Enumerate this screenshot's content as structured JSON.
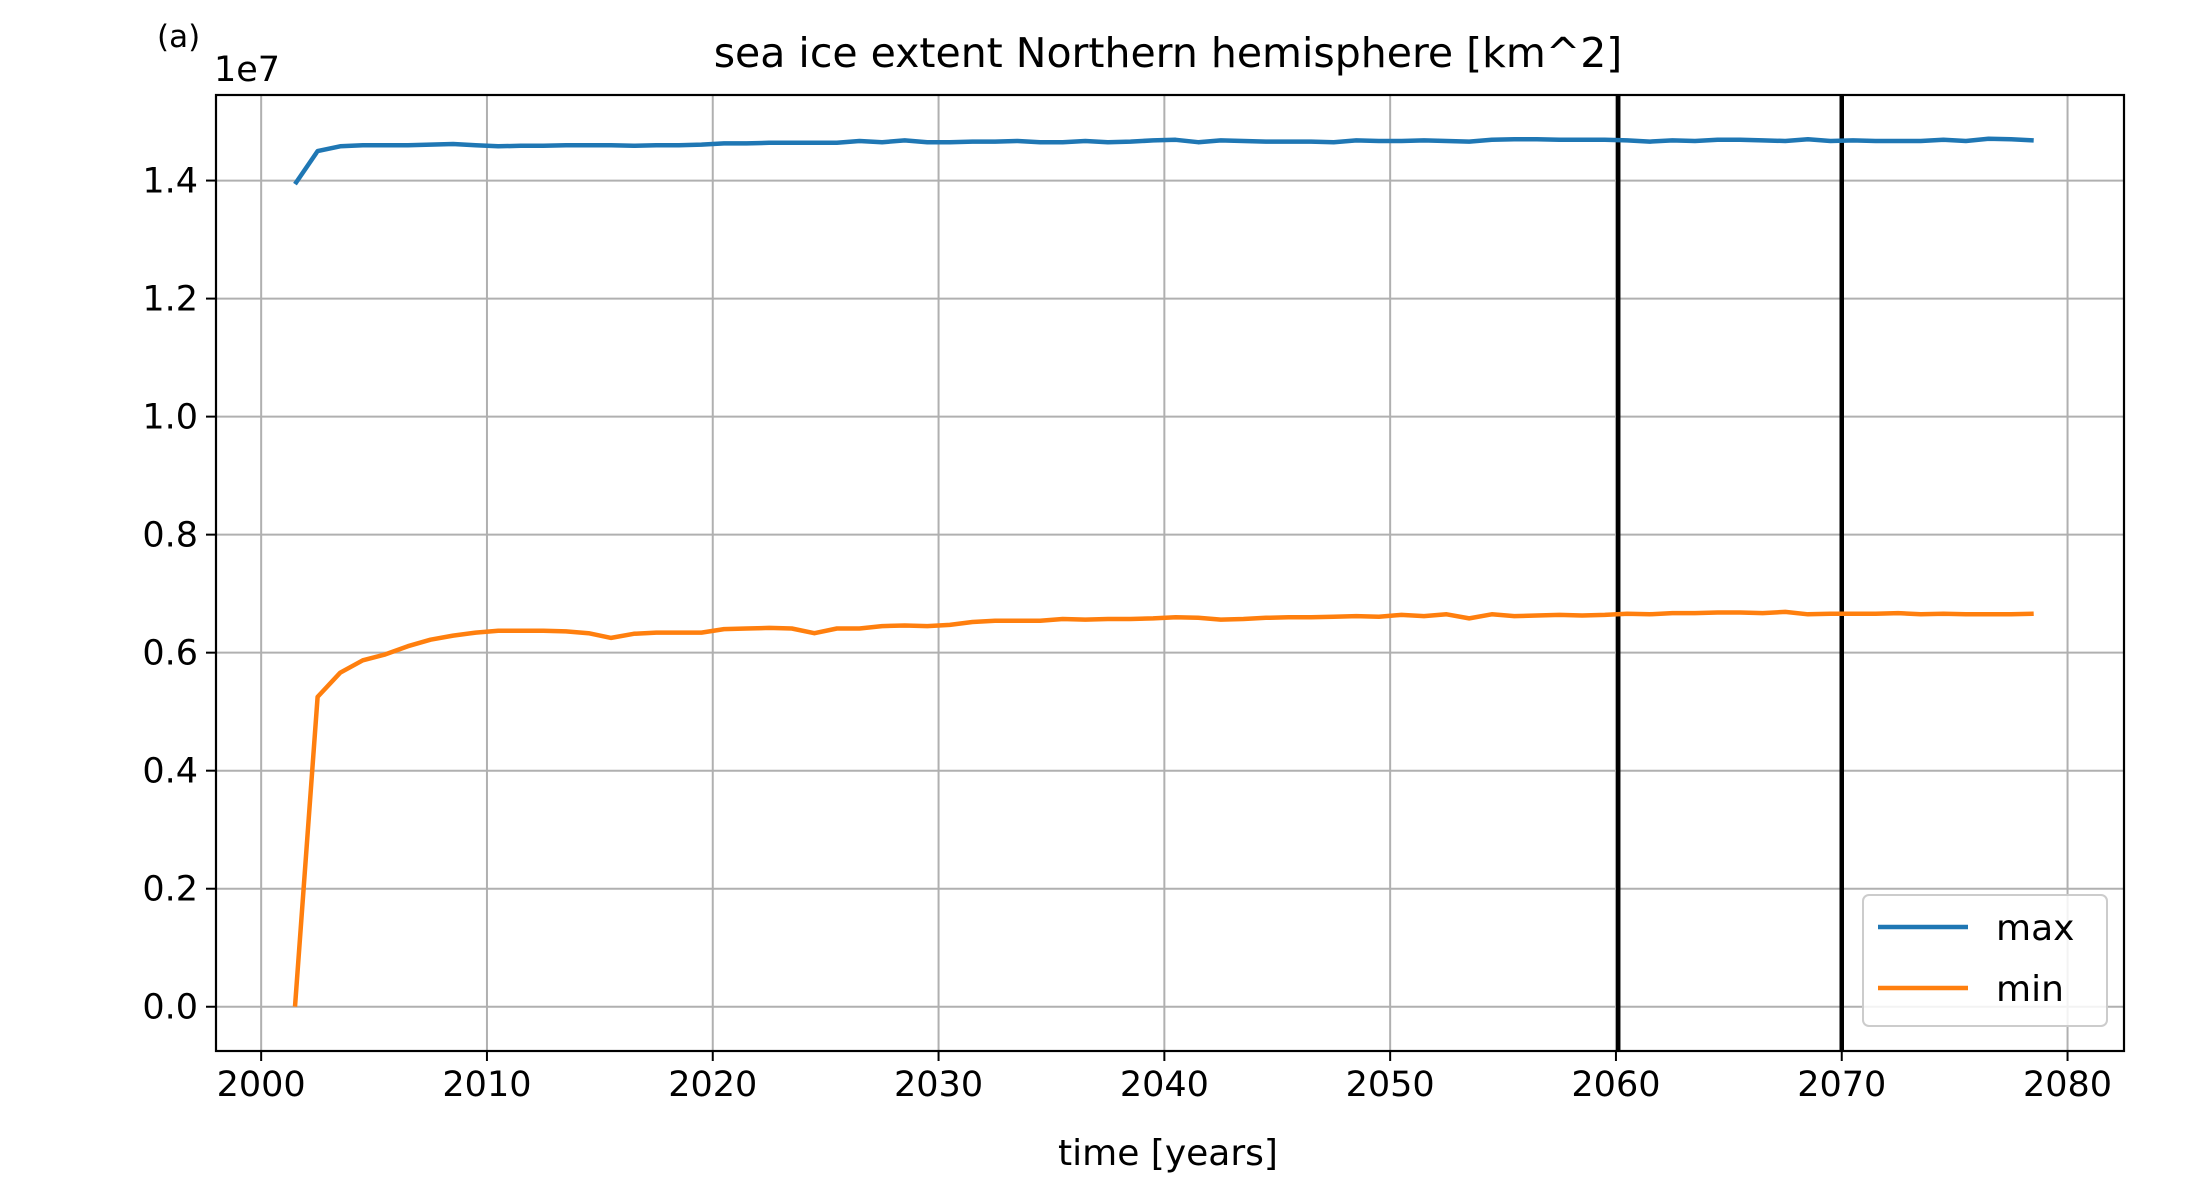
{
  "panel_label": "(a)",
  "chart_data": {
    "type": "line",
    "title": "sea ice extent Northern hemisphere [km^2]",
    "xlabel": "time [years]",
    "ylabel": "",
    "y_offset_label": "1e7",
    "xlim": [
      1998,
      2082.5
    ],
    "ylim": [
      -0.075,
      1.545
    ],
    "xticks": [
      2000,
      2010,
      2020,
      2030,
      2040,
      2050,
      2060,
      2070,
      2080
    ],
    "xtick_labels": [
      "2000",
      "2010",
      "2020",
      "2030",
      "2040",
      "2050",
      "2060",
      "2070",
      "2080"
    ],
    "yticks": [
      0.0,
      0.2,
      0.4,
      0.6,
      0.8,
      1.0,
      1.2,
      1.4
    ],
    "ytick_labels": [
      "0.0",
      "0.2",
      "0.4",
      "0.6",
      "0.8",
      "1.0",
      "1.2",
      "1.4"
    ],
    "grid": true,
    "vertical_lines": [
      2060.1,
      2070.0
    ],
    "legend_position": "lower right",
    "x": [
      2001.5,
      2002.5,
      2003.5,
      2004.5,
      2005.5,
      2006.5,
      2007.5,
      2008.5,
      2009.5,
      2010.5,
      2011.5,
      2012.5,
      2013.5,
      2014.5,
      2015.5,
      2016.5,
      2017.5,
      2018.5,
      2019.5,
      2020.5,
      2021.5,
      2022.5,
      2023.5,
      2024.5,
      2025.5,
      2026.5,
      2027.5,
      2028.5,
      2029.5,
      2030.5,
      2031.5,
      2032.5,
      2033.5,
      2034.5,
      2035.5,
      2036.5,
      2037.5,
      2038.5,
      2039.5,
      2040.5,
      2041.5,
      2042.5,
      2043.5,
      2044.5,
      2045.5,
      2046.5,
      2047.5,
      2048.5,
      2049.5,
      2050.5,
      2051.5,
      2052.5,
      2053.5,
      2054.5,
      2055.5,
      2056.5,
      2057.5,
      2058.5,
      2059.5,
      2060.5,
      2061.5,
      2062.5,
      2063.5,
      2064.5,
      2065.5,
      2066.5,
      2067.5,
      2068.5,
      2069.5,
      2070.5,
      2071.5,
      2072.5,
      2073.5,
      2074.5,
      2075.5,
      2076.5,
      2077.5,
      2078.5
    ],
    "series": [
      {
        "name": "max",
        "color": "#1f77b4",
        "values": [
          1.394,
          1.45,
          1.458,
          1.46,
          1.46,
          1.46,
          1.461,
          1.462,
          1.46,
          1.458,
          1.459,
          1.459,
          1.46,
          1.46,
          1.46,
          1.459,
          1.46,
          1.46,
          1.461,
          1.463,
          1.463,
          1.464,
          1.464,
          1.464,
          1.464,
          1.467,
          1.465,
          1.468,
          1.465,
          1.465,
          1.466,
          1.466,
          1.467,
          1.465,
          1.465,
          1.467,
          1.465,
          1.466,
          1.468,
          1.469,
          1.465,
          1.468,
          1.467,
          1.466,
          1.466,
          1.466,
          1.465,
          1.468,
          1.467,
          1.467,
          1.468,
          1.467,
          1.466,
          1.469,
          1.47,
          1.47,
          1.469,
          1.469,
          1.469,
          1.468,
          1.466,
          1.468,
          1.467,
          1.469,
          1.469,
          1.468,
          1.467,
          1.47,
          1.467,
          1.468,
          1.467,
          1.467,
          1.467,
          1.469,
          1.467,
          1.471,
          1.47,
          1.468
        ]
      },
      {
        "name": "min",
        "color": "#ff7f0e",
        "values": [
          0.0,
          0.525,
          0.566,
          0.587,
          0.597,
          0.611,
          0.622,
          0.629,
          0.634,
          0.637,
          0.637,
          0.637,
          0.636,
          0.633,
          0.625,
          0.632,
          0.634,
          0.634,
          0.634,
          0.64,
          0.641,
          0.642,
          0.641,
          0.633,
          0.641,
          0.641,
          0.645,
          0.646,
          0.645,
          0.647,
          0.652,
          0.654,
          0.654,
          0.654,
          0.657,
          0.656,
          0.657,
          0.657,
          0.658,
          0.66,
          0.659,
          0.656,
          0.657,
          0.659,
          0.66,
          0.66,
          0.661,
          0.662,
          0.661,
          0.664,
          0.662,
          0.665,
          0.658,
          0.665,
          0.662,
          0.663,
          0.664,
          0.663,
          0.664,
          0.666,
          0.665,
          0.667,
          0.667,
          0.668,
          0.668,
          0.667,
          0.669,
          0.665,
          0.666,
          0.666,
          0.666,
          0.667,
          0.665,
          0.666,
          0.665,
          0.665,
          0.665,
          0.666
        ]
      }
    ]
  }
}
